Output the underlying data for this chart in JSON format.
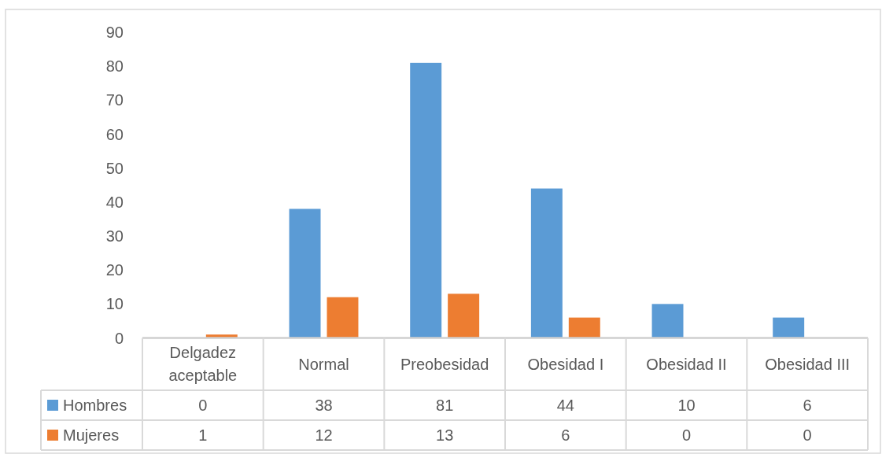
{
  "chart_data": {
    "type": "bar",
    "categories": [
      "Delgadez aceptable",
      "Normal",
      "Preobesidad",
      "Obesidad I",
      "Obesidad II",
      "Obesidad III"
    ],
    "series": [
      {
        "name": "Hombres",
        "color": "#5b9bd5",
        "values": [
          0,
          38,
          81,
          44,
          10,
          6
        ]
      },
      {
        "name": "Mujeres",
        "color": "#ed7d31",
        "values": [
          1,
          12,
          13,
          6,
          0,
          0
        ]
      }
    ],
    "ylim": [
      0,
      90
    ],
    "yticks": [
      0,
      10,
      20,
      30,
      40,
      50,
      60,
      70,
      80,
      90
    ],
    "legend": "bottom",
    "data_labels": true
  }
}
